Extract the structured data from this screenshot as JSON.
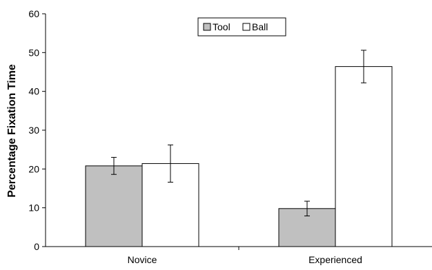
{
  "chart_data": {
    "type": "bar",
    "categories": [
      "Novice",
      "Experienced"
    ],
    "series": [
      {
        "name": "Tool",
        "values": [
          20.8,
          9.8
        ],
        "errors": [
          2.2,
          1.9
        ],
        "color": "#c0c0c0"
      },
      {
        "name": "Ball",
        "values": [
          21.4,
          46.4
        ],
        "errors": [
          4.8,
          4.2
        ],
        "color": "#ffffff"
      }
    ],
    "title": "",
    "xlabel": "",
    "ylabel": "Percentage Fixation Time",
    "ylim": [
      0,
      60
    ],
    "yticks": [
      "0",
      "10",
      "20",
      "30",
      "40",
      "50",
      "60"
    ],
    "grid": false,
    "legend_position": "top-center"
  }
}
